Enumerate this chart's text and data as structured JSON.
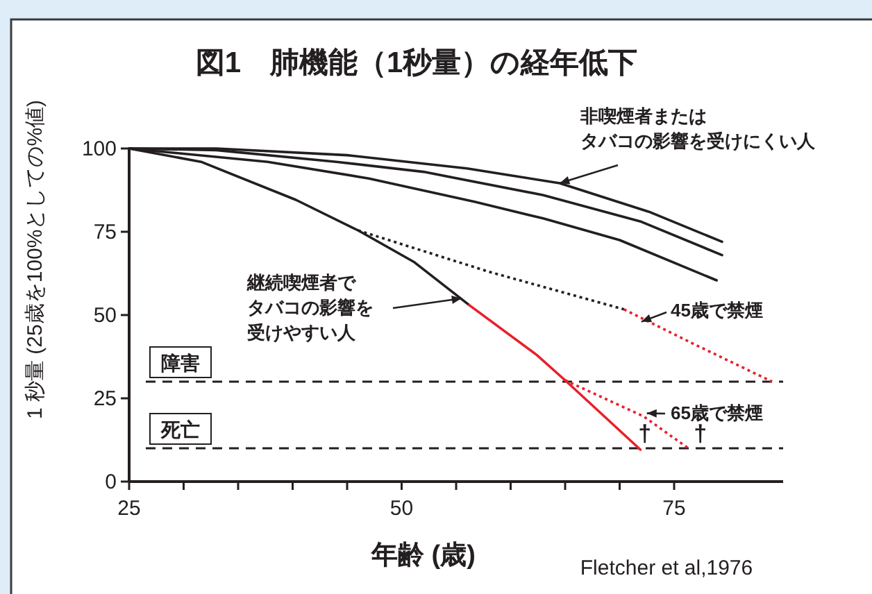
{
  "chart_data": {
    "type": "line",
    "title": "図1　肺機能（1秒量）の経年低下",
    "xlabel": "年齢 (歳)",
    "ylabel": "1 秒量 (25歳を100%としての%値)",
    "xlim": [
      25,
      85
    ],
    "ylim": [
      0,
      100
    ],
    "xticks": [
      25,
      {
        "value": 30,
        "label": null
      },
      {
        "value": 35,
        "label": null
      },
      {
        "value": 40,
        "label": null
      },
      {
        "value": 45,
        "label": null
      },
      50,
      {
        "value": 55,
        "label": null
      },
      {
        "value": 60,
        "label": null
      },
      {
        "value": 65,
        "label": null
      },
      {
        "value": 70,
        "label": null
      },
      75
    ],
    "yticks": [
      0,
      25,
      50,
      75,
      100
    ],
    "grid": false,
    "series": [
      {
        "color": "#231f20",
        "line_style": "solid",
        "x": [
          25,
          33,
          45,
          56,
          64.5,
          72.7,
          79.4
        ],
        "values": [
          100,
          100,
          98,
          94,
          89.6,
          81,
          72
        ]
      },
      {
        "color": "#231f20",
        "line_style": "solid",
        "x": [
          25,
          33,
          44,
          52,
          63,
          72,
          79.4
        ],
        "values": [
          100,
          99.5,
          96,
          93,
          86,
          78,
          68
        ]
      },
      {
        "color": "#231f20",
        "line_style": "solid",
        "x": [
          25,
          37.7,
          47,
          56.7,
          63,
          70,
          78.9
        ],
        "values": [
          100,
          96,
          91,
          84,
          79,
          72.5,
          60.4
        ]
      },
      {
        "color": "#231f20",
        "line_style": "solid",
        "x": [
          25,
          31.6,
          40.3,
          46,
          51.1,
          56.2
        ],
        "values": [
          100,
          96,
          84.6,
          75.4,
          66,
          53
        ]
      },
      {
        "color": "#e8202a",
        "line_style": "solid",
        "x": [
          56.2,
          62.4,
          65,
          71.9
        ],
        "values": [
          53,
          38,
          30.4,
          9.6
        ]
      },
      {
        "color": "#231f20",
        "line_style": "dotted",
        "x": [
          46,
          58,
          70.4
        ],
        "values": [
          75.4,
          63,
          51.7
        ]
      },
      {
        "color": "#e8202a",
        "line_style": "dotted",
        "x": [
          70.4,
          77,
          84
        ],
        "values": [
          51.7,
          41,
          30
        ]
      },
      {
        "color": "#e8202a",
        "line_style": "dotted",
        "x": [
          65,
          72.2,
          76.3
        ],
        "values": [
          30.4,
          19.6,
          10
        ]
      }
    ],
    "ref_lines": [
      {
        "axis": "y",
        "value": 30,
        "label": "障害",
        "line_style": "dashed",
        "color": "#231f20"
      },
      {
        "axis": "y",
        "value": 10,
        "label": "死亡",
        "line_style": "dashed",
        "color": "#231f20"
      }
    ],
    "annotations": [
      "非喫煙者または",
      {
        "text": "タバコの影響を受けにくい人",
        "x": 64.5,
        "y": 89.6
      },
      "継続喫煙者で",
      {
        "text": "タバコの影響を",
        "x": 55.5,
        "y": 55
      },
      "受けやすい人",
      {
        "text": "45歳で禁煙",
        "x": 72,
        "y": 48
      },
      {
        "text": "65歳で禁煙",
        "x": 72.5,
        "y": 20.5
      },
      {
        "text": "†",
        "x": 72.3,
        "y": 12
      },
      {
        "text": "†",
        "x": 77.4,
        "y": 12
      },
      "Fletcher et al,1976"
    ]
  }
}
